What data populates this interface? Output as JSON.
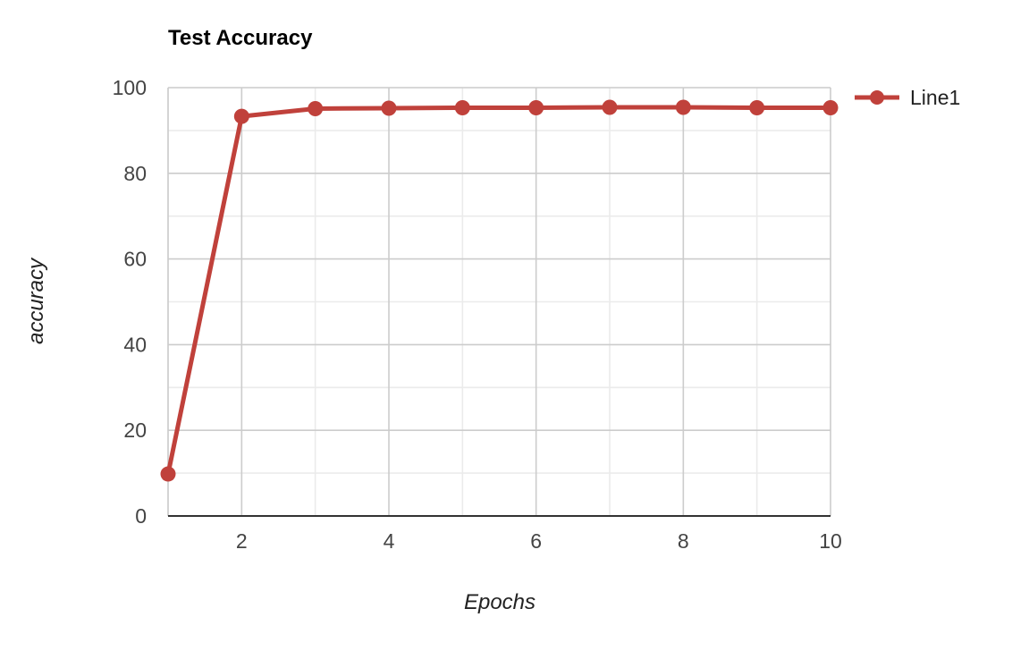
{
  "chart_data": {
    "type": "line",
    "title": "Test Accuracy",
    "xlabel": "Epochs",
    "ylabel": "accuracy",
    "x": [
      1,
      2,
      3,
      4,
      5,
      6,
      7,
      8,
      9,
      10
    ],
    "series": [
      {
        "name": "Line1",
        "color": "#c0413b",
        "values": [
          9.8,
          93.3,
          95.1,
          95.2,
          95.3,
          95.3,
          95.4,
          95.4,
          95.3,
          95.3
        ]
      }
    ],
    "xlim": [
      1,
      10
    ],
    "ylim": [
      0,
      100
    ],
    "xticks": [
      2,
      4,
      6,
      8,
      10
    ],
    "xtick_labels": [
      "2",
      "4",
      "6",
      "8",
      "10"
    ],
    "yticks": [
      0,
      20,
      40,
      60,
      80,
      100
    ],
    "ytick_labels": [
      "0",
      "20",
      "40",
      "60",
      "80",
      "100"
    ],
    "grid": true,
    "legend_position": "right"
  }
}
